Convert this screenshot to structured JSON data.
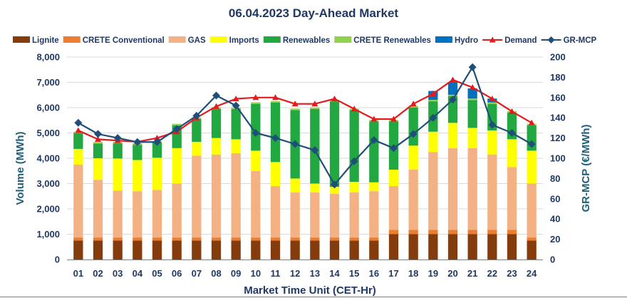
{
  "chart_data": {
    "type": "bar",
    "stacked": true,
    "title": "06.04.2023  Day-Ahead Market",
    "xlabel": "Market Time Unit (CET-Hr)",
    "ylabel": "Volume (MWh)",
    "y2label": "GR-MCP (€/MWh)",
    "ylim": [
      0,
      8000
    ],
    "y_ticks": [
      "0",
      "1,000",
      "2,000",
      "3,000",
      "4,000",
      "5,000",
      "6,000",
      "7,000",
      "8,000"
    ],
    "y2lim": [
      0,
      200
    ],
    "y2_ticks": [
      "0",
      "20",
      "40",
      "60",
      "80",
      "100",
      "120",
      "140",
      "160",
      "180",
      "200"
    ],
    "grid": true,
    "legend_position": "top",
    "categories": [
      "01",
      "02",
      "03",
      "04",
      "05",
      "06",
      "07",
      "08",
      "09",
      "10",
      "11",
      "12",
      "13",
      "14",
      "15",
      "16",
      "17",
      "18",
      "19",
      "20",
      "21",
      "22",
      "23",
      "24"
    ],
    "series": [
      {
        "name": "Lignite",
        "color": "#843c0c",
        "kind": "bar",
        "values": [
          750,
          750,
          750,
          750,
          750,
          750,
          750,
          750,
          750,
          750,
          750,
          750,
          750,
          750,
          750,
          750,
          1000,
          1000,
          1000,
          1000,
          1000,
          1000,
          1000,
          750
        ]
      },
      {
        "name": "CRETE Conventional",
        "color": "#ed7d31",
        "kind": "bar",
        "values": [
          120,
          120,
          120,
          120,
          120,
          120,
          120,
          120,
          120,
          120,
          120,
          120,
          120,
          120,
          120,
          120,
          170,
          170,
          170,
          170,
          170,
          170,
          170,
          120
        ]
      },
      {
        "name": "GAS",
        "color": "#f4b183",
        "kind": "bar",
        "values": [
          2880,
          2280,
          1850,
          1830,
          1880,
          2130,
          3230,
          3280,
          3330,
          2630,
          2030,
          1780,
          1780,
          1730,
          1780,
          1830,
          1730,
          2380,
          3080,
          3230,
          3230,
          2980,
          2480,
          2130
        ]
      },
      {
        "name": "Imports",
        "color": "#ffff00",
        "kind": "bar",
        "values": [
          620,
          850,
          1270,
          1230,
          1270,
          1400,
          550,
          650,
          550,
          800,
          950,
          550,
          350,
          270,
          420,
          350,
          650,
          950,
          800,
          1000,
          800,
          950,
          1100,
          1300
        ]
      },
      {
        "name": "Renewables",
        "color": "#21a841",
        "kind": "bar",
        "values": [
          620,
          580,
          600,
          600,
          600,
          900,
          900,
          1150,
          1200,
          1850,
          2350,
          2700,
          2950,
          3370,
          2830,
          2400,
          1900,
          1500,
          1200,
          1050,
          1100,
          1050,
          1050,
          1000
        ]
      },
      {
        "name": "CRETE Renewables",
        "color": "#92d050",
        "kind": "bar",
        "values": [
          60,
          60,
          60,
          60,
          60,
          60,
          60,
          60,
          60,
          60,
          60,
          60,
          60,
          60,
          60,
          60,
          60,
          60,
          60,
          60,
          60,
          60,
          60,
          60
        ]
      },
      {
        "name": "Hydro",
        "color": "#0070c0",
        "kind": "bar",
        "values": [
          0,
          0,
          0,
          0,
          0,
          0,
          0,
          0,
          0,
          0,
          0,
          0,
          0,
          0,
          0,
          0,
          0,
          0,
          350,
          500,
          400,
          150,
          0,
          0
        ]
      },
      {
        "name": "Demand",
        "color": "#e41a1c",
        "kind": "line",
        "marker": "triangle",
        "axis": "left",
        "values": [
          5100,
          4750,
          4700,
          4650,
          4800,
          5050,
          5600,
          6050,
          6350,
          6400,
          6400,
          6150,
          6150,
          6350,
          5950,
          5550,
          5550,
          6150,
          6550,
          7100,
          6800,
          6350,
          5850,
          5400
        ]
      },
      {
        "name": "GR-MCP",
        "color": "#1f4e79",
        "kind": "line",
        "marker": "diamond",
        "axis": "right",
        "values": [
          135,
          124,
          120,
          116,
          116,
          129,
          142,
          162,
          152,
          125,
          120,
          114,
          108,
          74,
          97,
          118,
          110,
          124,
          140,
          158,
          190,
          133,
          125,
          114
        ]
      }
    ]
  }
}
